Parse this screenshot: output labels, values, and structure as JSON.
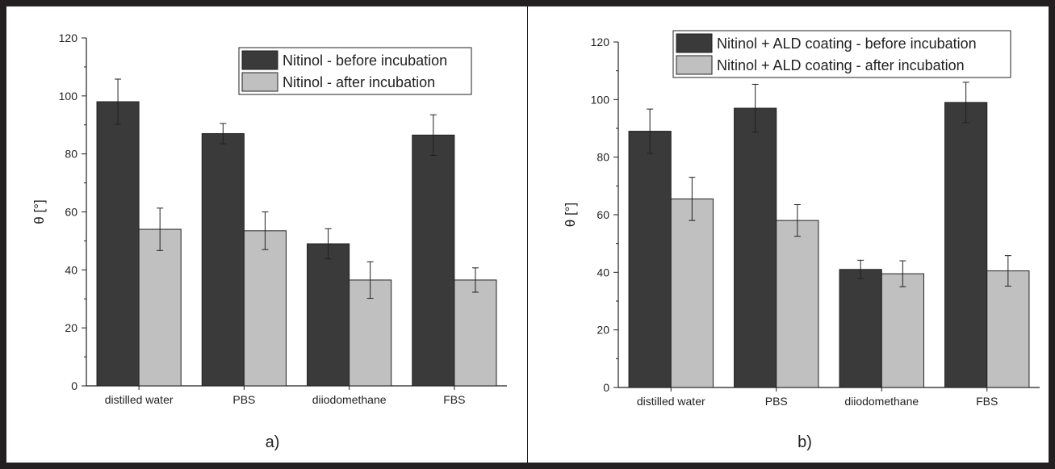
{
  "chart_data": [
    {
      "type": "bar",
      "panel_label": "a)",
      "ylabel": "θ [°]",
      "ylim": [
        0,
        120
      ],
      "yticks": [
        0,
        20,
        40,
        60,
        80,
        100,
        120
      ],
      "categories": [
        "distilled water",
        "PBS",
        "diiodomethane",
        "FBS"
      ],
      "series": [
        {
          "name": "Nitinol - before incubation",
          "color": "#3a3a3a",
          "values": [
            98,
            87,
            49,
            86.5
          ],
          "errors": [
            7.8,
            3.5,
            5.2,
            7
          ]
        },
        {
          "name": "Nitinol - after incubation",
          "color": "#c0c0c0",
          "values": [
            54,
            53.5,
            36.5,
            36.5
          ],
          "errors": [
            7.3,
            6.5,
            6.3,
            4.2
          ]
        }
      ],
      "legend_position": "top-right",
      "grid": false
    },
    {
      "type": "bar",
      "panel_label": "b)",
      "ylabel": "θ [°]",
      "ylim": [
        0,
        120
      ],
      "yticks": [
        0,
        20,
        40,
        60,
        80,
        100,
        120
      ],
      "categories": [
        "distilled water",
        "PBS",
        "diiodomethane",
        "FBS"
      ],
      "series": [
        {
          "name": "Nitinol + ALD coating - before incubation",
          "color": "#3a3a3a",
          "values": [
            89,
            97,
            41,
            99
          ],
          "errors": [
            7.7,
            8.3,
            3.2,
            7
          ]
        },
        {
          "name": "Nitinol + ALD coating - after incubation",
          "color": "#c0c0c0",
          "values": [
            65.5,
            58,
            39.5,
            40.5
          ],
          "errors": [
            7.5,
            5.5,
            4.5,
            5.3
          ]
        }
      ],
      "legend_position": "top-left",
      "grid": false
    }
  ]
}
